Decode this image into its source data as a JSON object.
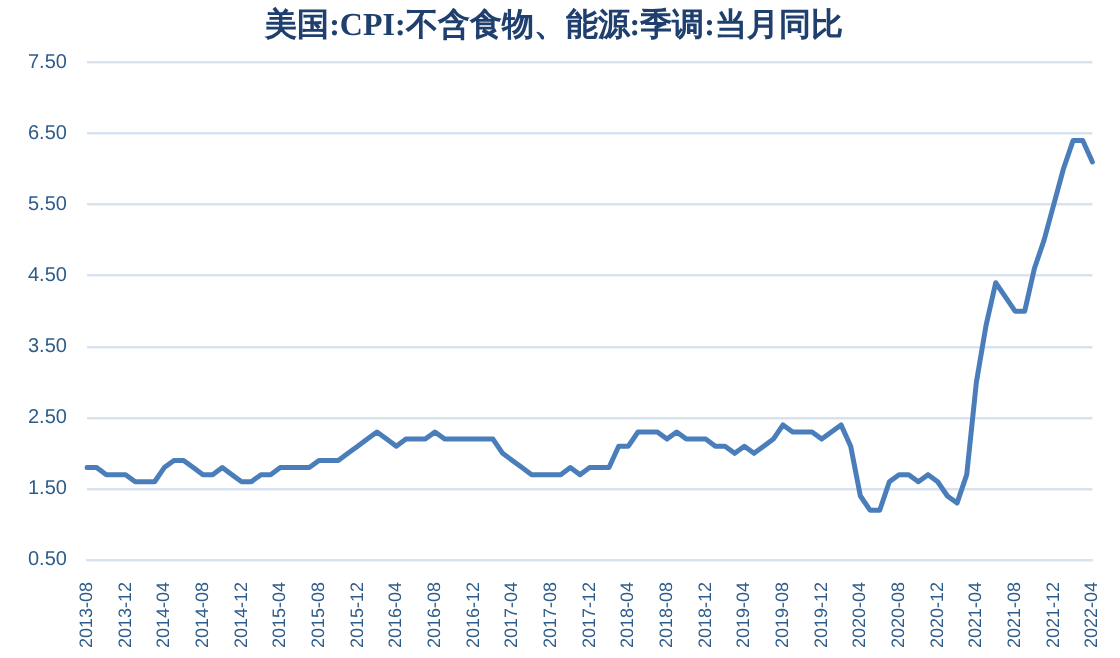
{
  "chart_data": {
    "type": "line",
    "title": "美国:CPI:不含食物、能源:季调:当月同比",
    "categories": [
      "2013-08",
      null,
      null,
      null,
      "2013-12",
      null,
      null,
      null,
      "2014-04",
      null,
      null,
      null,
      "2014-08",
      null,
      null,
      null,
      "2014-12",
      null,
      null,
      null,
      "2015-04",
      null,
      null,
      null,
      "2015-08",
      null,
      null,
      null,
      "2015-12",
      null,
      null,
      null,
      "2016-04",
      null,
      null,
      null,
      "2016-08",
      null,
      null,
      null,
      "2016-12",
      null,
      null,
      null,
      "2017-04",
      null,
      null,
      null,
      "2017-08",
      null,
      null,
      null,
      "2017-12",
      null,
      null,
      null,
      "2018-04",
      null,
      null,
      null,
      "2018-08",
      null,
      null,
      null,
      "2018-12",
      null,
      null,
      null,
      "2019-04",
      null,
      null,
      null,
      "2019-08",
      null,
      null,
      null,
      "2019-12",
      null,
      null,
      null,
      "2020-04",
      null,
      null,
      null,
      "2020-08",
      null,
      null,
      null,
      "2020-12",
      null,
      null,
      null,
      "2021-04",
      null,
      null,
      null,
      "2021-08",
      null,
      null,
      null,
      "2021-12",
      null,
      null,
      null,
      "2022-04"
    ],
    "series": [
      {
        "color": "#4a7ebb",
        "values": [
          1.8,
          1.8,
          1.7,
          1.7,
          1.7,
          1.6,
          1.6,
          1.6,
          1.8,
          1.9,
          1.9,
          1.8,
          1.7,
          1.7,
          1.8,
          1.7,
          1.6,
          1.6,
          1.7,
          1.7,
          1.8,
          1.8,
          1.8,
          1.8,
          1.9,
          1.9,
          1.9,
          2.0,
          2.1,
          2.2,
          2.3,
          2.2,
          2.1,
          2.2,
          2.2,
          2.2,
          2.3,
          2.2,
          2.2,
          2.2,
          2.2,
          2.2,
          2.2,
          2.0,
          1.9,
          1.8,
          1.7,
          1.7,
          1.7,
          1.7,
          1.8,
          1.7,
          1.8,
          1.8,
          1.8,
          2.1,
          2.1,
          2.3,
          2.3,
          2.3,
          2.2,
          2.3,
          2.2,
          2.2,
          2.2,
          2.1,
          2.1,
          2.0,
          2.1,
          2.0,
          2.1,
          2.2,
          2.4,
          2.3,
          2.3,
          2.3,
          2.2,
          2.3,
          2.4,
          2.1,
          1.4,
          1.2,
          1.2,
          1.6,
          1.7,
          1.7,
          1.6,
          1.7,
          1.6,
          1.4,
          1.3,
          1.7,
          3.0,
          3.8,
          4.4,
          4.2,
          4.0,
          4.0,
          4.6,
          5.0,
          5.5,
          6.0,
          6.4,
          6.4,
          6.1
        ]
      }
    ],
    "ylim": [
      0.5,
      7.5
    ],
    "yticks": [
      {
        "value": 0.5,
        "label": "0.50"
      },
      {
        "value": 1.5,
        "label": "1.50"
      },
      {
        "value": 2.5,
        "label": "2.50"
      },
      {
        "value": 3.5,
        "label": "3.50"
      },
      {
        "value": 4.5,
        "label": "4.50"
      },
      {
        "value": 5.5,
        "label": "5.50"
      },
      {
        "value": 6.5,
        "label": "6.50"
      },
      {
        "value": 7.5,
        "label": "7.50"
      }
    ],
    "grid": "y",
    "legend": false,
    "marker": "none",
    "line_style": "solid"
  }
}
